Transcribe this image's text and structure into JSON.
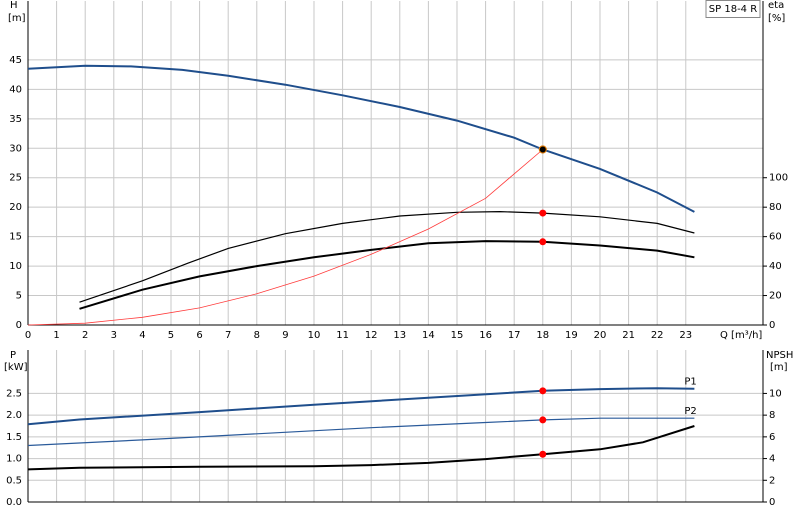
{
  "chart_data": [
    {
      "type": "line",
      "title": "SP 18-4 R",
      "ylabel": "H",
      "yunit": "[m]",
      "y2label": "eta",
      "y2unit": "[%]",
      "xlabel": "Q [m³/h]",
      "xlim": [
        0,
        25.7
      ],
      "xticks": [
        0,
        1,
        2,
        3,
        4,
        5,
        6,
        7,
        8,
        9,
        10,
        11,
        12,
        13,
        14,
        15,
        16,
        17,
        18,
        19,
        20,
        21,
        22,
        23
      ],
      "ylim": [
        0,
        55
      ],
      "yticks": [
        0,
        5,
        10,
        15,
        20,
        25,
        30,
        35,
        40,
        45
      ],
      "y2lim": [
        0,
        220
      ],
      "y2ticks": [
        0,
        20,
        40,
        60,
        80,
        100
      ],
      "grid": true,
      "xtick_labels": true,
      "duty_x": 18,
      "series": [
        {
          "color": "#1f4e8c",
          "line_width": 2,
          "marker_color": "#f5c400",
          "x": [
            0,
            2,
            3.6,
            5.4,
            7,
            9,
            11,
            13,
            15,
            17,
            18,
            20,
            22,
            23.3
          ],
          "values": [
            43.5,
            44,
            43.9,
            43.3,
            42.3,
            40.8,
            39,
            37,
            34.7,
            31.8,
            29.8,
            26.5,
            22.5,
            19.2
          ]
        },
        {
          "color": "#000000",
          "line_width": 1.2,
          "axis": "y2",
          "marker_color": "#ff0000",
          "x": [
            1.8,
            4,
            5.6,
            7,
            9,
            11,
            13,
            15,
            16.5,
            18,
            20,
            22,
            23.3
          ],
          "values": [
            15.5,
            30,
            42,
            52,
            62,
            69,
            74,
            76.5,
            77,
            76,
            73.5,
            69,
            62.5
          ]
        },
        {
          "color": "#000000",
          "line_width": 2,
          "axis": "y2",
          "marker_color": "#ff0000",
          "x": [
            1.8,
            4,
            6,
            8,
            10,
            12,
            14,
            16,
            18,
            20,
            22,
            23.3
          ],
          "values": [
            11,
            24,
            33,
            40,
            46,
            51,
            55.5,
            57,
            56.5,
            54,
            50.5,
            46
          ]
        },
        {
          "color": "#ff3b3b",
          "line_width": 0.8,
          "x": [
            0,
            2,
            4,
            6,
            8,
            10,
            12,
            14,
            16,
            18
          ],
          "values": [
            0,
            0.3,
            1.3,
            2.9,
            5.3,
            8.3,
            12,
            16.3,
            21.5,
            29.8
          ]
        }
      ]
    },
    {
      "type": "line",
      "ylabel": "P",
      "yunit": "[kW]",
      "y2label": "NPSH",
      "y2unit": "[m]",
      "xlim": [
        0,
        25.7
      ],
      "xticks": [
        0,
        1,
        2,
        3,
        4,
        5,
        6,
        7,
        8,
        9,
        10,
        11,
        12,
        13,
        14,
        15,
        16,
        17,
        18,
        19,
        20,
        21,
        22,
        23
      ],
      "ylim": [
        0,
        3.5
      ],
      "yticks": [
        {
          "value": 0,
          "label": "0.0"
        },
        0.5,
        {
          "value": 1,
          "label": "1.0"
        },
        1.5,
        {
          "value": 2,
          "label": "2.0"
        },
        2.5
      ],
      "y2lim": [
        0,
        14
      ],
      "y2ticks": [
        0,
        2,
        4,
        6,
        8,
        10
      ],
      "grid": true,
      "xtick_labels": false,
      "duty_x": 18,
      "series": [
        {
          "name": "P1",
          "color": "#1f4e8c",
          "line_width": 2,
          "marker_color": "#ff0000",
          "x": [
            0,
            1.8,
            6,
            10,
            14,
            18,
            20,
            22,
            23.3
          ],
          "values": [
            1.79,
            1.9,
            2.07,
            2.24,
            2.4,
            2.56,
            2.6,
            2.62,
            2.61
          ]
        },
        {
          "name": "P2",
          "color": "#2a5a9a",
          "line_width": 1.2,
          "marker_color": "#ff0000",
          "x": [
            0,
            4,
            8,
            12,
            16,
            18,
            20,
            23.3
          ],
          "values": [
            1.3,
            1.43,
            1.57,
            1.71,
            1.83,
            1.89,
            1.93,
            1.93
          ]
        },
        {
          "color": "#000000",
          "line_width": 2,
          "axis": "y2",
          "marker_color": "#ff0000",
          "x": [
            0,
            1.8,
            6,
            10,
            12,
            14,
            16,
            18,
            20,
            21.5,
            23.3
          ],
          "values": [
            3.0,
            3.15,
            3.25,
            3.3,
            3.4,
            3.6,
            3.95,
            4.4,
            4.85,
            5.5,
            7.0
          ]
        }
      ]
    }
  ]
}
